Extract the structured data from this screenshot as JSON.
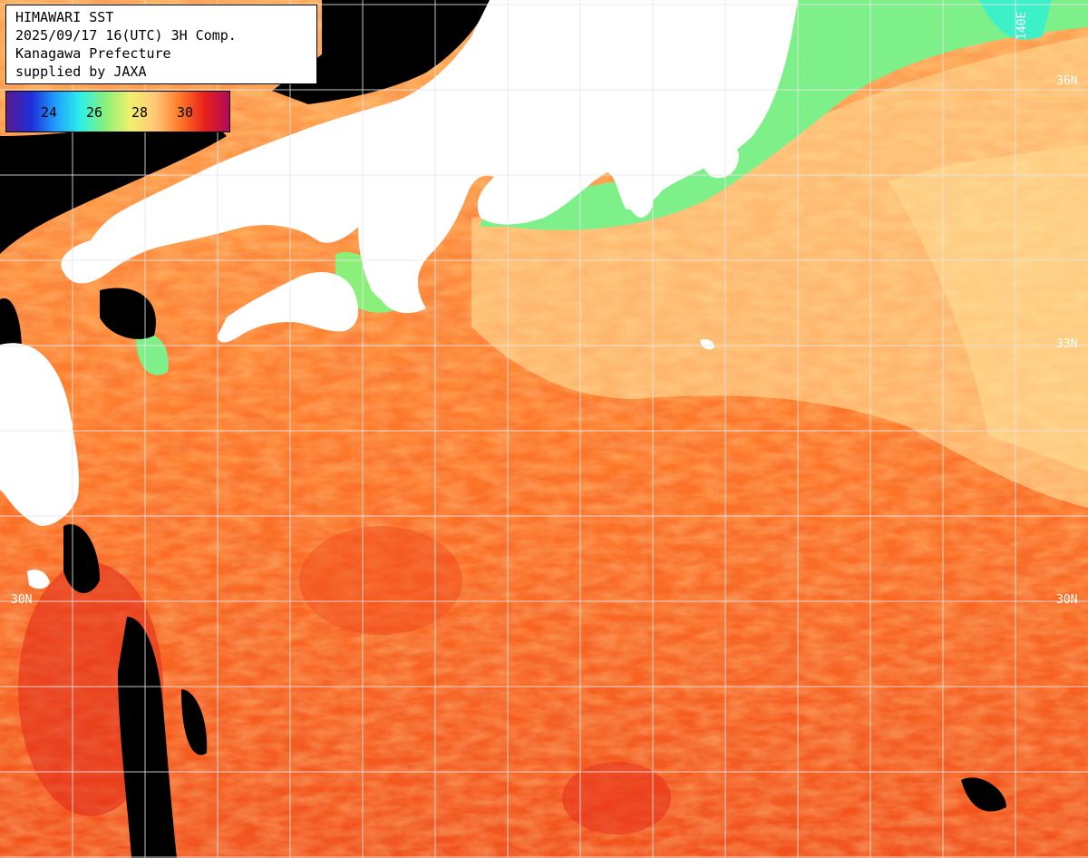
{
  "header": {
    "line1": "HIMAWARI SST",
    "line2": "2025/09/17 16(UTC) 3H Comp.",
    "line3": "Kanagawa Prefecture",
    "line4": "supplied by JAXA"
  },
  "legend": {
    "ticks": [
      "24",
      "26",
      "28",
      "30"
    ],
    "colors": [
      "#5a1a8c",
      "#1f2cd8",
      "#1fa0ff",
      "#2cf0e6",
      "#8af07a",
      "#f0f06c",
      "#ffc878",
      "#ff7a28",
      "#e8201a",
      "#b00a5a"
    ]
  },
  "grid_labels": {
    "lat_36": "36N",
    "lat_33": "33N",
    "lat_30_left": "30N",
    "lat_30_right": "30N",
    "lon_top": "140E"
  },
  "map_colors": {
    "land": "#ffffff",
    "no_data": "#000000",
    "warm_sea": "#ff6a1a",
    "very_warm": "#ee3a14",
    "mild_sea": "#ffb66a",
    "cool_coast": "#7ef08a",
    "cooler": "#3cf0c8",
    "grid": "#e6e6e6"
  }
}
